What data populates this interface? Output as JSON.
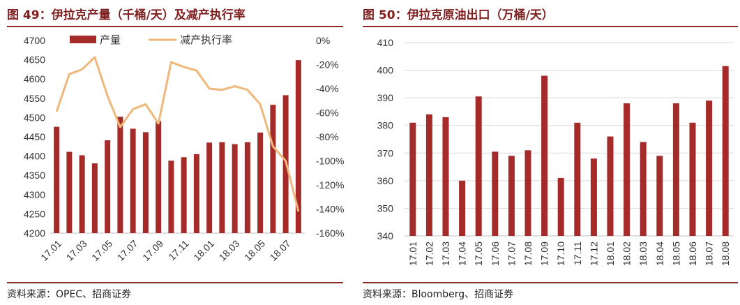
{
  "left": {
    "title": "图 49：伊拉克产量（千桶/天）及减产执行率",
    "source": "资料来源：OPEC、招商证券",
    "chart_data": {
      "type": "bar+line",
      "categories": [
        "17.01",
        "17.02",
        "17.03",
        "17.04",
        "17.05",
        "17.06",
        "17.07",
        "17.08",
        "17.09",
        "17.10",
        "17.11",
        "17.12",
        "18.01",
        "18.02",
        "18.03",
        "18.04",
        "18.05",
        "18.06",
        "18.07",
        "18.08"
      ],
      "x_tick_labels": [
        "17.01",
        "17.03",
        "17.05",
        "17.07",
        "17.09",
        "17.11",
        "18.01",
        "18.03",
        "18.05",
        "18.07"
      ],
      "y_left": {
        "min": 4200,
        "max": 4700,
        "step": 50,
        "ticks": [
          "4200",
          "4250",
          "4300",
          "4350",
          "4400",
          "4450",
          "4500",
          "4550",
          "4600",
          "4650",
          "4700"
        ]
      },
      "y_right": {
        "min": -160,
        "max": 0,
        "step": 20,
        "ticks": [
          "-160%",
          "-140%",
          "-120%",
          "-100%",
          "-80%",
          "-60%",
          "-40%",
          "-20%",
          "0%"
        ]
      },
      "series": [
        {
          "name": "产量",
          "type": "bar",
          "axis": "left",
          "color": "#a52a2a",
          "values": [
            4476,
            4411,
            4402,
            4381,
            4441,
            4502,
            4471,
            4462,
            4491,
            4388,
            4397,
            4405,
            4435,
            4436,
            4431,
            4436,
            4461,
            4533,
            4558,
            4649
          ]
        },
        {
          "name": "减产执行率",
          "type": "line",
          "axis": "right",
          "color": "#f0b77a",
          "values": [
            -59,
            -28,
            -24,
            -14,
            -46,
            -72,
            -57,
            -53,
            -69,
            -18,
            -22,
            -25,
            -40,
            -41,
            -38,
            -41,
            -53,
            -88,
            -100,
            -142
          ]
        }
      ],
      "legend_position": "top"
    }
  },
  "right": {
    "title": "图 50：伊拉克原油出口（万桶/天）",
    "source": "资料来源：Bloomberg、招商证券",
    "chart_data": {
      "type": "bar",
      "categories": [
        "17.01",
        "17.02",
        "17.03",
        "17.04",
        "17.05",
        "17.06",
        "17.07",
        "17.08",
        "17.09",
        "17.10",
        "17.11",
        "17.12",
        "18.01",
        "18.02",
        "18.03",
        "18.04",
        "18.05",
        "18.06",
        "18.07",
        "18.08"
      ],
      "values": [
        381,
        384,
        383,
        360,
        390.5,
        370.5,
        369,
        371,
        398,
        361,
        381,
        368,
        376,
        388,
        374,
        369,
        388,
        381,
        389,
        401.5
      ],
      "ylim": [
        340,
        410
      ],
      "y_ticks": [
        "340",
        "350",
        "360",
        "370",
        "380",
        "390",
        "400",
        "410"
      ],
      "color": "#a52a2a",
      "grid": true
    }
  }
}
